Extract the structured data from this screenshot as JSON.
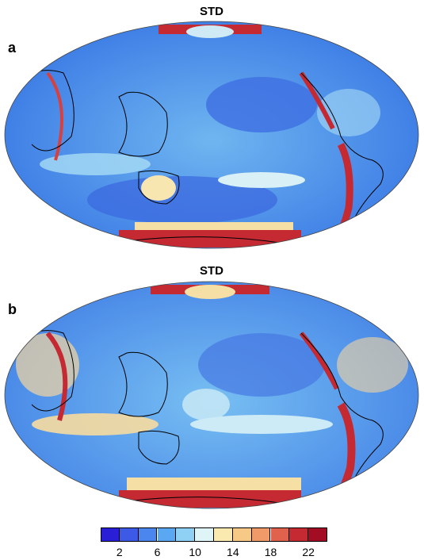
{
  "panels": [
    {
      "letter": "a",
      "title": "STD"
    },
    {
      "letter": "b",
      "title": "STD"
    }
  ],
  "colorbar": {
    "colors": [
      "#2a1fd6",
      "#3c5ae6",
      "#4b86ef",
      "#5aa8f2",
      "#8fd0f5",
      "#dff4f7",
      "#fbeab0",
      "#f7c987",
      "#f09a6a",
      "#e0624d",
      "#c52a33",
      "#a30d24"
    ],
    "ticks": [
      "2",
      "6",
      "10",
      "14",
      "18",
      "22"
    ]
  }
}
